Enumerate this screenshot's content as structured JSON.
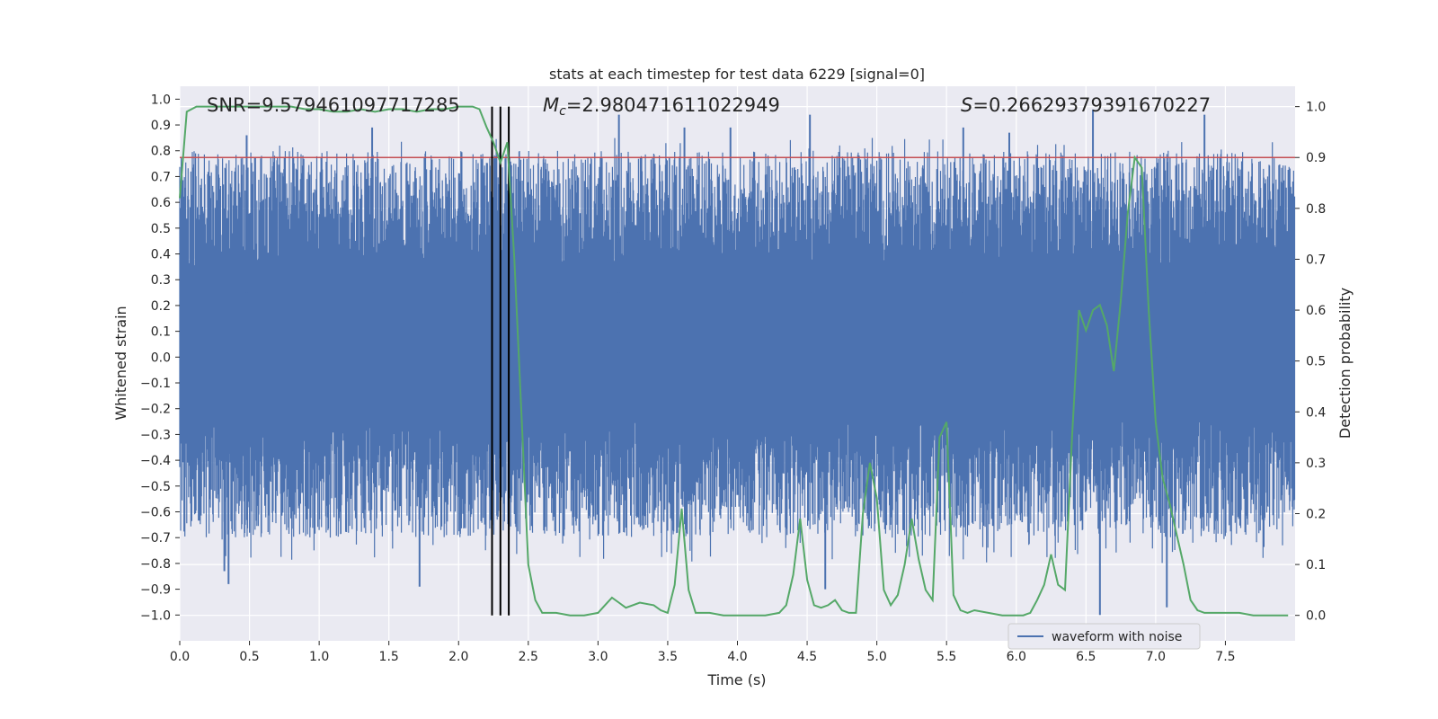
{
  "chart_data": {
    "type": "line",
    "title": "stats at each timestep for test data 6229 [signal=0]",
    "xlabel": "Time (s)",
    "ylabel_left": "Whitened strain",
    "ylabel_right": "Detection probability",
    "xlim": [
      0,
      8
    ],
    "ylim_left": [
      -1.1,
      1.05
    ],
    "ylim_right": [
      -0.05,
      1.04
    ],
    "x_ticks": [
      "0.0",
      "0.5",
      "1.0",
      "1.5",
      "2.0",
      "2.5",
      "3.0",
      "3.5",
      "4.0",
      "4.5",
      "5.0",
      "5.5",
      "6.0",
      "6.5",
      "7.0",
      "7.5"
    ],
    "y_ticks_left": [
      "1.0",
      "0.9",
      "0.8",
      "0.7",
      "0.6",
      "0.5",
      "0.4",
      "0.3",
      "0.2",
      "0.1",
      "0.0",
      "-0.1",
      "-0.2",
      "-0.3",
      "-0.4",
      "-0.5",
      "-0.6",
      "-0.7",
      "-0.8",
      "-0.9",
      "-1.0"
    ],
    "y_ticks_right": [
      "1.0",
      "0.9",
      "0.8",
      "0.7",
      "0.6",
      "0.5",
      "0.4",
      "0.3",
      "0.2",
      "0.1",
      "0.0"
    ],
    "grid": true,
    "legend_position": "bottom-right",
    "annotations": {
      "snr": "SNR=9.579461097717285",
      "mc_prefix": "M",
      "mc_sub": "c",
      "mc_value": "=2.980471611022949",
      "s_prefix": "S",
      "s_value": "=0.26629379391670227"
    },
    "threshold": {
      "value": 0.9,
      "color": "#c44e52"
    },
    "vertical_lines": {
      "x": [
        2.24,
        2.3,
        2.36
      ],
      "color": "#000000"
    },
    "series": [
      {
        "name": "waveform with noise",
        "color": "#4c72b0",
        "description_envelope_typical": [
          -0.45,
          0.6
        ],
        "peaks_x": [
          0.48,
          0.32,
          0.35,
          1.38,
          1.72,
          3.15,
          3.62,
          3.95,
          4.52,
          4.63,
          5.62,
          5.95,
          6.55,
          6.6,
          7.35,
          7.08
        ],
        "peaks_y": [
          0.86,
          -0.83,
          -0.88,
          0.89,
          -0.89,
          0.94,
          0.89,
          0.89,
          0.94,
          -0.9,
          0.89,
          0.87,
          0.96,
          -1.0,
          0.94,
          -0.97
        ]
      },
      {
        "name": "detection probability",
        "color": "#55a868",
        "x": [
          0.0,
          0.05,
          0.12,
          0.2,
          0.3,
          0.4,
          0.5,
          0.6,
          0.7,
          0.8,
          0.9,
          1.0,
          1.1,
          1.2,
          1.3,
          1.4,
          1.5,
          1.6,
          1.7,
          1.8,
          1.9,
          2.0,
          2.1,
          2.15,
          2.2,
          2.25,
          2.3,
          2.35,
          2.4,
          2.45,
          2.5,
          2.55,
          2.6,
          2.7,
          2.8,
          2.9,
          3.0,
          3.05,
          3.1,
          3.15,
          3.2,
          3.3,
          3.4,
          3.45,
          3.5,
          3.55,
          3.6,
          3.65,
          3.7,
          3.8,
          3.9,
          4.0,
          4.1,
          4.2,
          4.3,
          4.35,
          4.4,
          4.45,
          4.5,
          4.55,
          4.6,
          4.65,
          4.7,
          4.75,
          4.8,
          4.85,
          4.9,
          4.95,
          5.0,
          5.05,
          5.1,
          5.15,
          5.2,
          5.25,
          5.3,
          5.35,
          5.4,
          5.45,
          5.5,
          5.55,
          5.6,
          5.65,
          5.7,
          5.8,
          5.9,
          6.0,
          6.05,
          6.1,
          6.15,
          6.2,
          6.25,
          6.3,
          6.35,
          6.4,
          6.45,
          6.5,
          6.55,
          6.6,
          6.65,
          6.7,
          6.75,
          6.8,
          6.85,
          6.9,
          6.95,
          7.0,
          7.05,
          7.1,
          7.15,
          7.2,
          7.25,
          7.3,
          7.35,
          7.4,
          7.5,
          7.6,
          7.7,
          7.8,
          7.9,
          7.95
        ],
        "y": [
          0.82,
          0.99,
          1.0,
          1.0,
          1.0,
          1.0,
          1.0,
          1.0,
          1.0,
          1.0,
          0.995,
          0.995,
          0.99,
          0.99,
          0.995,
          0.99,
          0.995,
          0.995,
          0.99,
          0.995,
          0.995,
          1.0,
          1.0,
          0.995,
          0.96,
          0.93,
          0.89,
          0.93,
          0.7,
          0.4,
          0.1,
          0.03,
          0.005,
          0.005,
          0.0,
          0.0,
          0.005,
          0.02,
          0.035,
          0.025,
          0.015,
          0.025,
          0.02,
          0.01,
          0.005,
          0.06,
          0.21,
          0.05,
          0.005,
          0.005,
          0.0,
          0.0,
          0.0,
          0.0,
          0.005,
          0.02,
          0.08,
          0.19,
          0.07,
          0.02,
          0.015,
          0.02,
          0.03,
          0.01,
          0.005,
          0.005,
          0.2,
          0.3,
          0.23,
          0.05,
          0.02,
          0.04,
          0.1,
          0.19,
          0.11,
          0.05,
          0.03,
          0.35,
          0.38,
          0.04,
          0.01,
          0.005,
          0.01,
          0.005,
          0.0,
          0.0,
          0.0,
          0.005,
          0.03,
          0.06,
          0.12,
          0.06,
          0.05,
          0.35,
          0.6,
          0.56,
          0.6,
          0.61,
          0.57,
          0.48,
          0.62,
          0.79,
          0.9,
          0.88,
          0.6,
          0.38,
          0.27,
          0.22,
          0.16,
          0.1,
          0.03,
          0.01,
          0.005,
          0.005,
          0.005,
          0.005,
          0.0,
          0.0,
          0.0,
          0.0
        ]
      }
    ]
  }
}
